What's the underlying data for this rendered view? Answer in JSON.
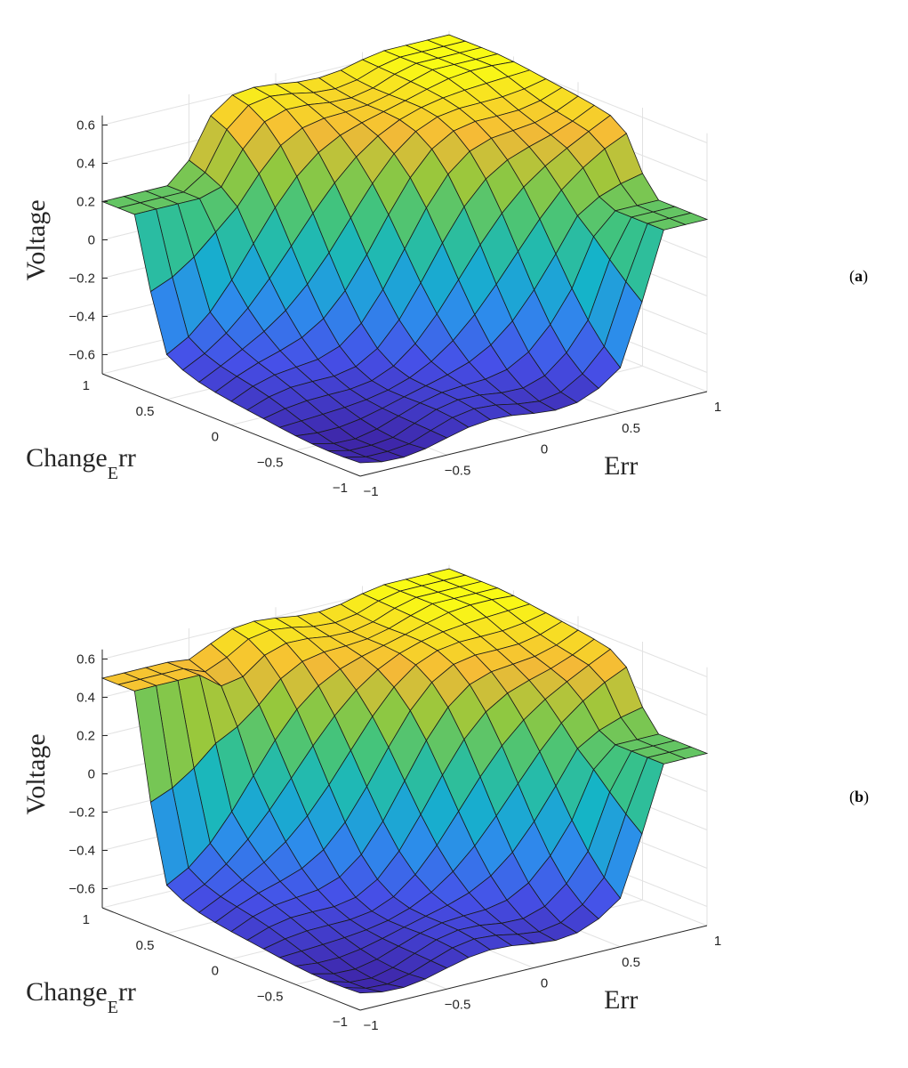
{
  "figure": {
    "panels": [
      {
        "tag_open": "(",
        "tag_letter": "a",
        "tag_close": ")"
      },
      {
        "tag_open": "(",
        "tag_letter": "b",
        "tag_close": ")"
      }
    ]
  },
  "chart_data": [
    {
      "type": "surface",
      "title": "",
      "zlabel": "Voltage",
      "xlabel": "Err",
      "ylabel_main": "Change",
      "ylabel_sub": "E",
      "ylabel_tail": "rr",
      "xlim": [
        -1,
        1
      ],
      "ylim": [
        -1,
        1
      ],
      "zlim": [
        -0.7,
        0.65
      ],
      "xticks": [
        "−1",
        "−0.5",
        "0",
        "0.5",
        "1"
      ],
      "yticks": [
        "−1",
        "−0.5",
        "0",
        "0.5",
        "1"
      ],
      "zticks": [
        "−0.6",
        "−0.4",
        "−0.2",
        "0",
        "0.2",
        "0.4",
        "0.6"
      ],
      "zticks_values": [
        -0.6,
        -0.4,
        -0.2,
        0,
        0.2,
        0.4,
        0.6
      ],
      "surface": {
        "low": -0.62,
        "high": 0.62,
        "edge_plateau": 0.2
      }
    },
    {
      "type": "surface",
      "title": "",
      "zlabel": "Voltage",
      "xlabel": "Err",
      "ylabel_main": "Change",
      "ylabel_sub": "E",
      "ylabel_tail": "rr",
      "xlim": [
        -1,
        1
      ],
      "ylim": [
        -1,
        1
      ],
      "zlim": [
        -0.7,
        0.65
      ],
      "xticks": [
        "−1",
        "−0.5",
        "0",
        "0.5",
        "1"
      ],
      "yticks": [
        "−1",
        "−0.5",
        "0",
        "0.5",
        "1"
      ],
      "zticks": [
        "−0.6",
        "−0.4",
        "−0.2",
        "0",
        "0.2",
        "0.4",
        "0.6"
      ],
      "zticks_values": [
        -0.6,
        -0.4,
        -0.2,
        0,
        0.2,
        0.4,
        0.6
      ],
      "surface": {
        "low": -0.6,
        "high": 0.62,
        "edge_plateau": 0.5
      }
    }
  ]
}
